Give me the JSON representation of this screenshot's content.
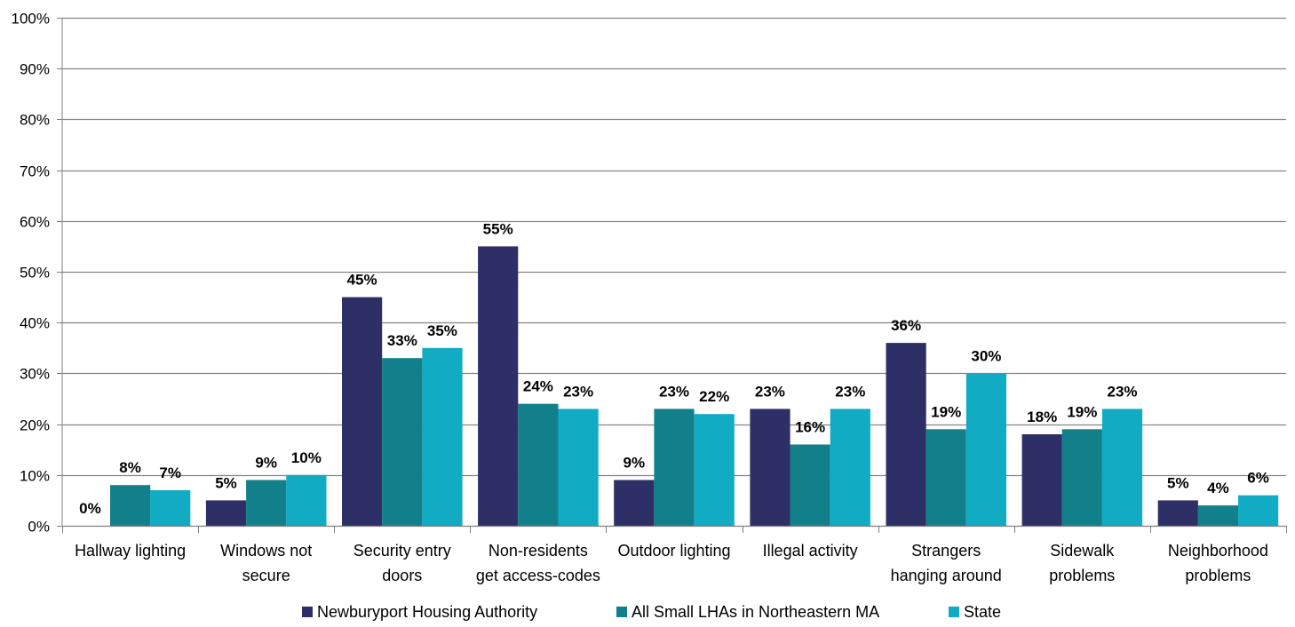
{
  "chart_data": {
    "type": "bar",
    "title": "",
    "xlabel": "",
    "ylabel": "",
    "ylim": [
      0,
      100
    ],
    "y_tick_labels": [
      "0%",
      "10%",
      "20%",
      "30%",
      "40%",
      "50%",
      "60%",
      "70%",
      "80%",
      "90%",
      "100%"
    ],
    "y_ticks": [
      0,
      10,
      20,
      30,
      40,
      50,
      60,
      70,
      80,
      90,
      100
    ],
    "grid": true,
    "legend_position": "bottom",
    "categories": [
      [
        "Hallway lighting"
      ],
      [
        "Windows not",
        "secure"
      ],
      [
        "Security entry",
        "doors"
      ],
      [
        "Non-residents",
        "get access-codes"
      ],
      [
        "Outdoor lighting"
      ],
      [
        "Illegal activity"
      ],
      [
        "Strangers",
        "hanging around"
      ],
      [
        "Sidewalk",
        "problems"
      ],
      [
        "Neighborhood",
        "problems"
      ]
    ],
    "series": [
      {
        "name": "Newburyport Housing Authority",
        "color": "#2e2f66",
        "values": [
          0,
          5,
          45,
          55,
          9,
          23,
          36,
          18,
          5
        ]
      },
      {
        "name": "All Small LHAs in Northeastern MA",
        "color": "#12808a",
        "values": [
          8,
          9,
          33,
          24,
          23,
          16,
          19,
          19,
          4
        ]
      },
      {
        "name": "State",
        "color": "#11acc4",
        "values": [
          7,
          10,
          35,
          23,
          22,
          23,
          30,
          23,
          6
        ]
      }
    ],
    "value_suffix": "%"
  }
}
